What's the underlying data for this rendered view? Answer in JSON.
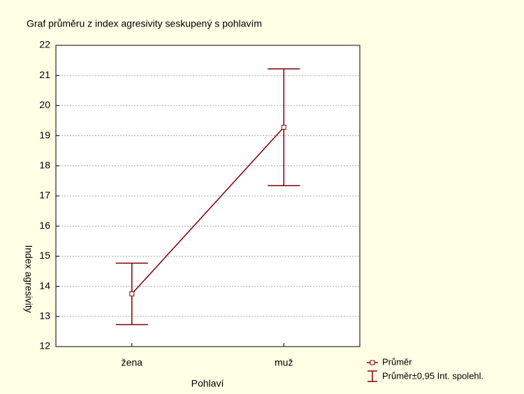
{
  "chart_data": {
    "type": "line",
    "title": "Graf průměru z index agresivity seskupený s pohlavím",
    "xlabel": "Pohlaví",
    "ylabel": "Index agresivity",
    "categories": [
      "žena",
      "muž"
    ],
    "series": [
      {
        "name": "Průměr",
        "color": "#800000",
        "values": [
          13.75,
          19.28
        ],
        "errors": [
          1.02,
          1.94
        ]
      }
    ],
    "error_name": "Průměr±0,95 Int. spolehl.",
    "ylim": [
      12,
      22
    ],
    "yticks": [
      12,
      13,
      14,
      15,
      16,
      17,
      18,
      19,
      20,
      21,
      22
    ],
    "grid": true
  }
}
